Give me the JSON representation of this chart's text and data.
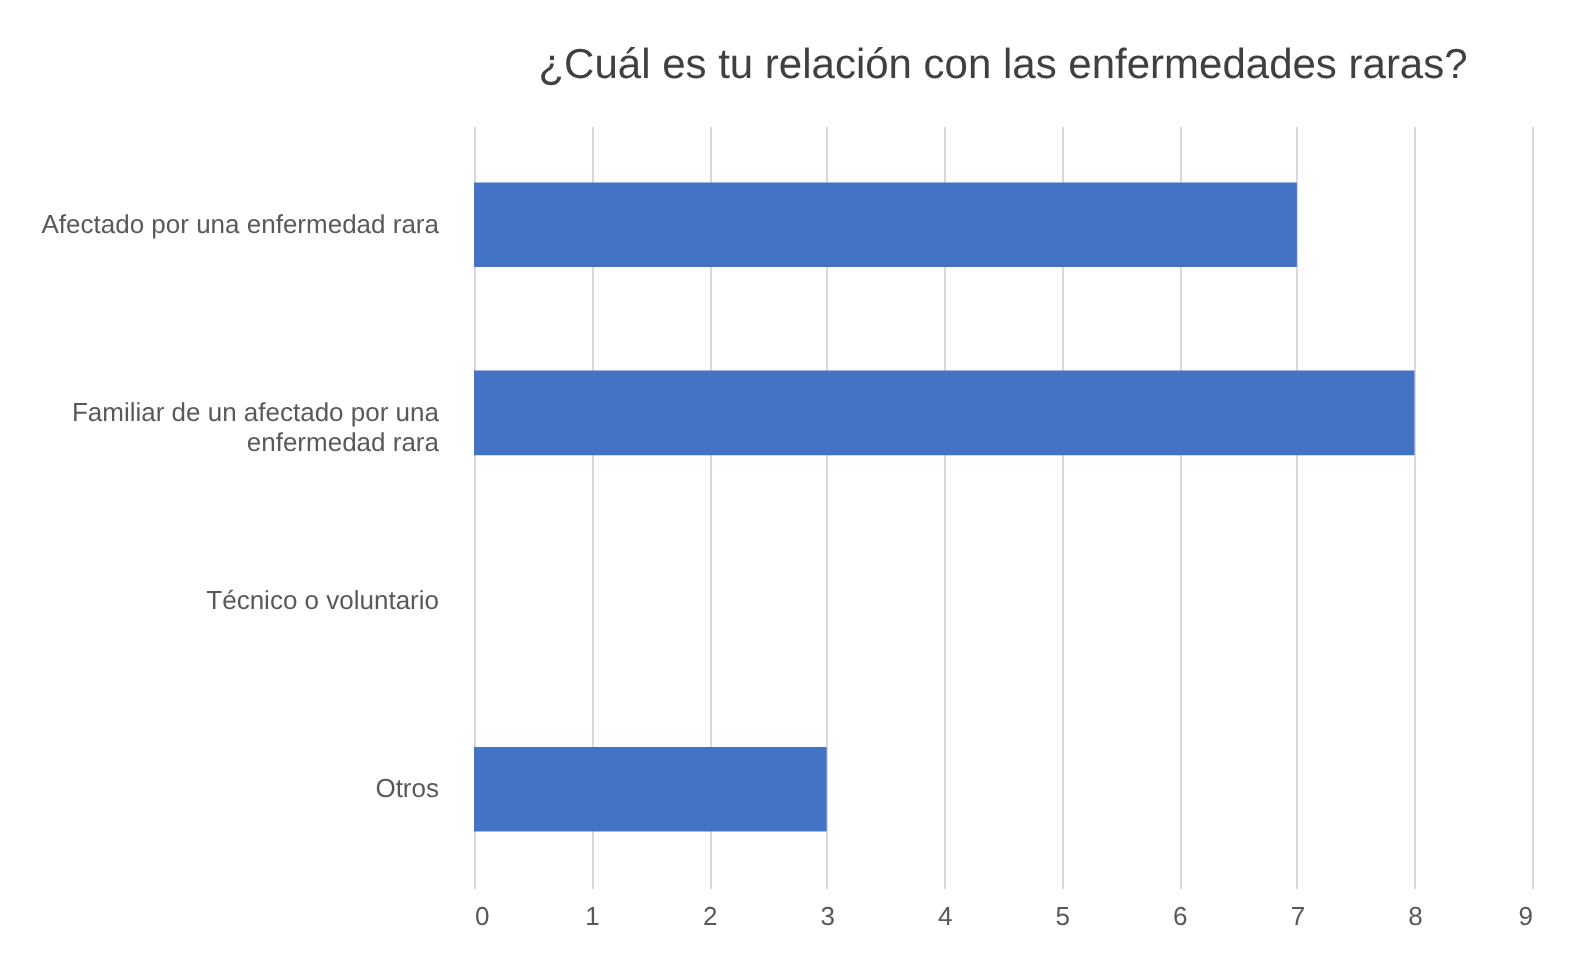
{
  "chart_data": {
    "type": "bar",
    "orientation": "horizontal",
    "title": "¿Cuál es tu relación con las enfermedades raras?",
    "categories": [
      "Afectado por una enfermedad rara",
      "Familiar de un afectado por una enfermedad rara",
      "Técnico o voluntario",
      "Otros"
    ],
    "values": [
      7,
      8,
      0,
      3
    ],
    "color": "#4472c4",
    "xlim": [
      0,
      9
    ],
    "xticks": [
      0,
      1,
      2,
      3,
      4,
      5,
      6,
      7,
      8,
      9
    ],
    "grid": "x"
  }
}
